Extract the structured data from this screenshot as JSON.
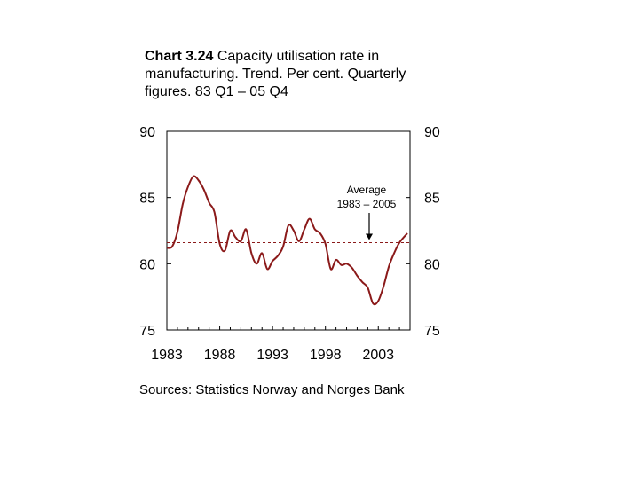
{
  "title": {
    "bold": "Chart 3.24",
    "rest": " Capacity utilisation rate in manufacturing. Trend. Per cent. Quarterly figures. 83 Q1 – 05 Q4"
  },
  "source": "Sources: Statistics Norway and Norges Bank",
  "colors": {
    "series": "#8b1a1a",
    "average": "#8b1a1a",
    "axis": "#000000"
  },
  "chart_data": {
    "type": "line",
    "title": "Chart 3.24 Capacity utilisation rate in manufacturing. Trend. Per cent. Quarterly figures. 83 Q1 – 05 Q4",
    "xlabel": "",
    "ylabel": "",
    "xlim": [
      1983,
      2006
    ],
    "ylim": [
      75,
      90
    ],
    "y_ticks": [
      90,
      85,
      80,
      75
    ],
    "x_ticks": [
      1983,
      1988,
      1993,
      1998,
      2003
    ],
    "grid": false,
    "average": {
      "value": 81.6,
      "label_line1": "Average",
      "label_line2": "1983 – 2005"
    },
    "series": [
      {
        "x": [
          1983.0,
          1983.5,
          1984.0,
          1984.5,
          1985.0,
          1985.5,
          1986.0,
          1986.5,
          1987.0,
          1987.5,
          1988.0,
          1988.5,
          1989.0,
          1989.5,
          1990.0,
          1990.5,
          1991.0,
          1991.5,
          1992.0,
          1992.5,
          1993.0,
          1993.5,
          1994.0,
          1994.5,
          1995.0,
          1995.5,
          1996.0,
          1996.5,
          1997.0,
          1997.5,
          1998.0,
          1998.5,
          1999.0,
          1999.5,
          2000.0,
          2000.5,
          2001.0,
          2001.5,
          2002.0,
          2002.5,
          2003.0,
          2003.5,
          2004.0,
          2004.5,
          2005.0,
          2005.75
        ],
        "values": [
          81.2,
          81.3,
          82.4,
          84.5,
          85.8,
          86.6,
          86.3,
          85.6,
          84.6,
          83.9,
          81.5,
          81.0,
          82.5,
          82.0,
          81.7,
          82.6,
          80.8,
          80.0,
          80.8,
          79.6,
          80.2,
          80.6,
          81.3,
          82.9,
          82.5,
          81.7,
          82.6,
          83.4,
          82.6,
          82.3,
          81.5,
          79.6,
          80.3,
          79.9,
          80.0,
          79.7,
          79.1,
          78.6,
          78.2,
          77.0,
          77.2,
          78.3,
          79.8,
          80.8,
          81.6,
          82.3
        ]
      }
    ]
  }
}
